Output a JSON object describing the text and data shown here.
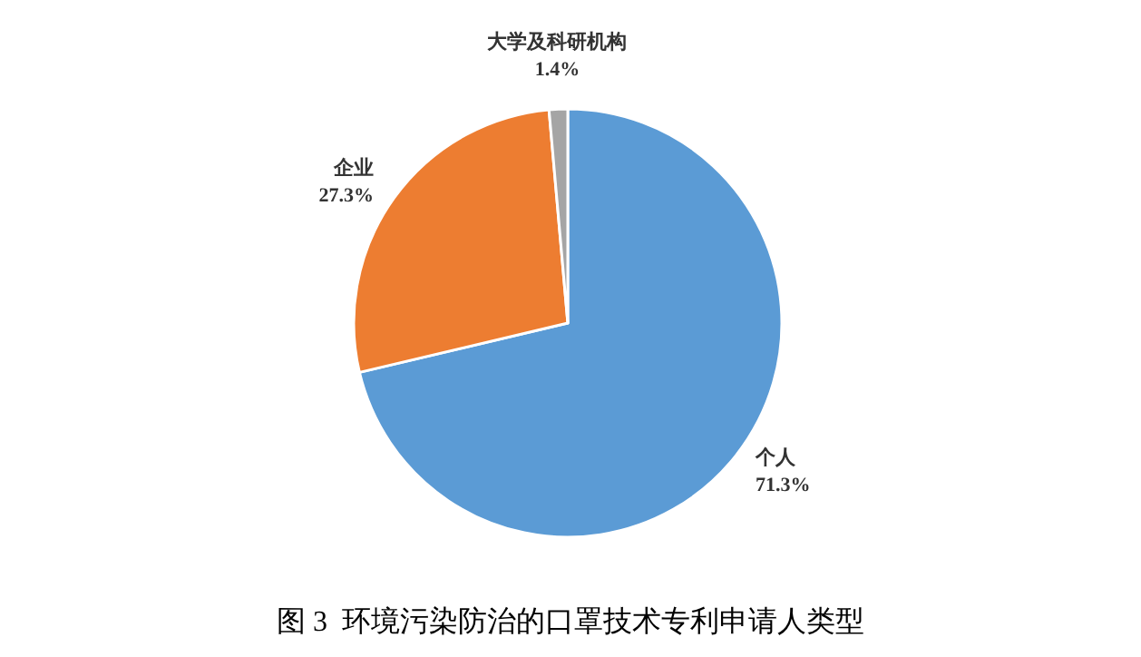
{
  "chart_data": {
    "type": "pie",
    "title": "图 3  环境污染防治的口罩技术专利申请人类型",
    "categories": [
      "个人",
      "企业",
      "大学及科研机构"
    ],
    "values": [
      71.3,
      27.3,
      1.4
    ],
    "colors": [
      "#5b9bd5",
      "#ed7d31",
      "#a5a5a5"
    ],
    "value_labels": [
      "71.3%",
      "27.3%",
      "1.4%"
    ],
    "legend": false
  }
}
